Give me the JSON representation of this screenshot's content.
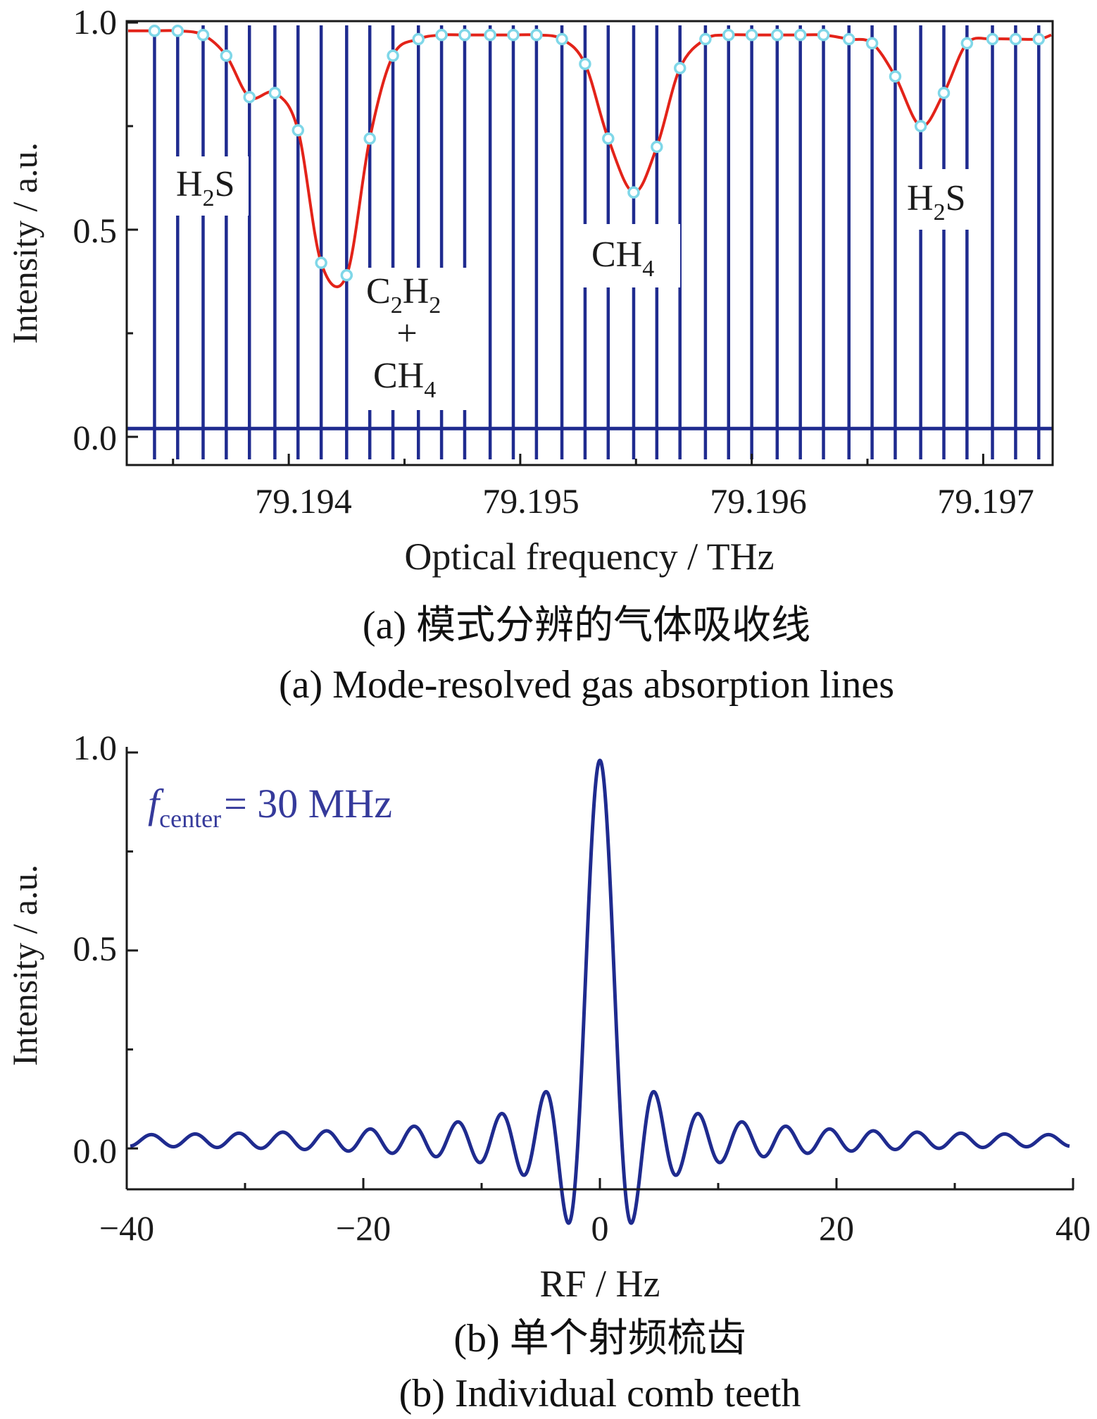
{
  "colors": {
    "comb": "#1f2b8f",
    "fit": "#e32319",
    "marker": "#7fd7e8",
    "axis": "#1a1a1a",
    "annotation_blue": "#353a9b"
  },
  "panel_a": {
    "caption_cn": "(a) 模式分辨的气体吸收线",
    "caption_en": "(a) Mode-resolved gas absorption lines",
    "ylabel": "Intensity / a.u.",
    "xlabel": "Optical frequency / THz",
    "yticks": [
      "0.0",
      "0.5",
      "1.0"
    ],
    "xticks": [
      "79.194",
      "79.195",
      "79.196",
      "79.197"
    ],
    "annotations": {
      "h2s_left": {
        "main": "H",
        "sub": "2",
        "tail": "S"
      },
      "c2h2": {
        "p1": "C",
        "s1": "2",
        "p2": "H",
        "s2": "2"
      },
      "plus": "+",
      "ch4_mix": {
        "main": "CH",
        "sub": "4"
      },
      "ch4": {
        "main": "CH",
        "sub": "4"
      },
      "h2s_right": {
        "main": "H",
        "sub": "2",
        "tail": "S"
      }
    }
  },
  "panel_b": {
    "caption_cn": "(b) 单个射频梳齿",
    "caption_en": "(b) Individual comb teeth",
    "ylabel": "Intensity / a.u.",
    "xlabel": "RF / Hz",
    "yticks": [
      "0.0",
      "0.5",
      "1.0"
    ],
    "xticks": [
      "−40",
      "−20",
      "0",
      "20",
      "40"
    ],
    "annotation": {
      "f": "f",
      "sub": "center",
      "rest": "= 30 MHz"
    }
  },
  "chart_data": [
    {
      "type": "line",
      "ylim": [
        -0.05,
        1.0
      ],
      "xlim": [
        79.1933,
        79.1973
      ],
      "baseline": 0.02,
      "series": [
        {
          "x": [
            79.19342,
            79.19352,
            79.19363,
            79.19373,
            79.19383,
            79.19394,
            79.19404,
            79.19414,
            79.19425,
            79.19435,
            79.19445,
            79.19456,
            79.19466,
            79.19476,
            79.19487,
            79.19497,
            79.19507,
            79.19518,
            79.19528,
            79.19538,
            79.19549,
            79.19559,
            79.19569,
            79.1958,
            79.1959,
            79.196,
            79.19611,
            79.19621,
            79.19631,
            79.19642,
            79.19652,
            79.19662,
            79.19673,
            79.19683,
            79.19693,
            79.19704,
            79.19714,
            79.19724
          ],
          "values": [
            0.98,
            0.98,
            0.97,
            0.92,
            0.82,
            0.83,
            0.74,
            0.42,
            0.39,
            0.72,
            0.92,
            0.96,
            0.97,
            0.97,
            0.97,
            0.97,
            0.97,
            0.96,
            0.9,
            0.72,
            0.59,
            0.7,
            0.89,
            0.96,
            0.97,
            0.97,
            0.97,
            0.97,
            0.97,
            0.96,
            0.95,
            0.87,
            0.75,
            0.83,
            0.95,
            0.96,
            0.96,
            0.96
          ]
        }
      ]
    },
    {
      "type": "line",
      "xlim": [
        -40,
        40
      ],
      "ylim": [
        -0.05,
        1.0
      ],
      "series": [
        {
          "peak_x": 0,
          "peak_value": 0.98,
          "baseline": 0.02
        }
      ]
    }
  ]
}
